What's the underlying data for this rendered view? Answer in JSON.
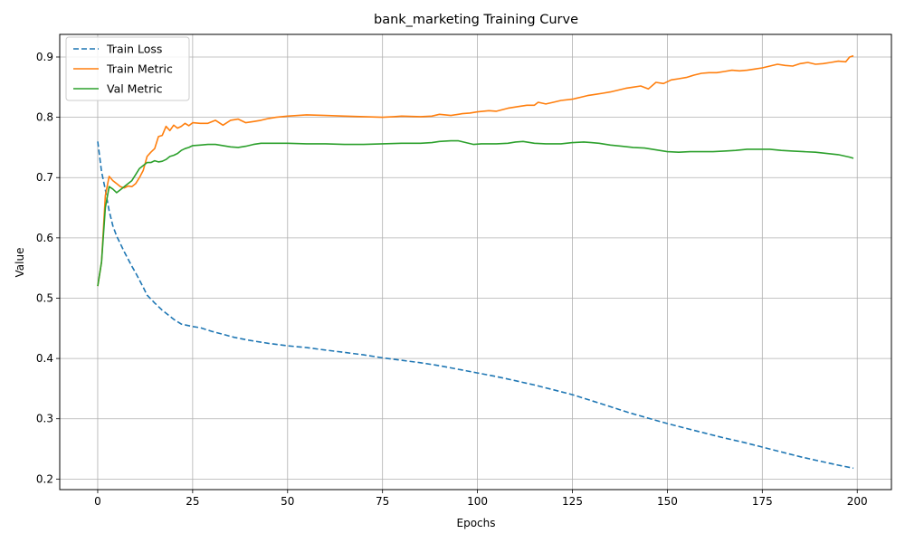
{
  "chart_data": {
    "type": "line",
    "title": "bank_marketing Training Curve",
    "xlabel": "Epochs",
    "ylabel": "Value",
    "xlim": [
      -10,
      209
    ],
    "ylim": [
      0.1825,
      0.9375
    ],
    "xticks": [
      0,
      25,
      50,
      75,
      100,
      125,
      150,
      175,
      200
    ],
    "yticks": [
      0.2,
      0.3,
      0.4,
      0.5,
      0.6,
      0.7,
      0.8,
      0.9
    ],
    "grid": true,
    "legend_position": "top-left",
    "series": [
      {
        "name": "Train Loss",
        "color": "#1f77b4",
        "style": "dashed",
        "points": [
          [
            0,
            0.76
          ],
          [
            1,
            0.71
          ],
          [
            2,
            0.68
          ],
          [
            3,
            0.645
          ],
          [
            4,
            0.62
          ],
          [
            5,
            0.603
          ],
          [
            6,
            0.59
          ],
          [
            7,
            0.577
          ],
          [
            8,
            0.565
          ],
          [
            9,
            0.553
          ],
          [
            10,
            0.542
          ],
          [
            12,
            0.518
          ],
          [
            13,
            0.505
          ],
          [
            15,
            0.492
          ],
          [
            17,
            0.48
          ],
          [
            20,
            0.465
          ],
          [
            22,
            0.457
          ],
          [
            25,
            0.453
          ],
          [
            27,
            0.451
          ],
          [
            30,
            0.445
          ],
          [
            33,
            0.44
          ],
          [
            36,
            0.435
          ],
          [
            40,
            0.43
          ],
          [
            45,
            0.425
          ],
          [
            50,
            0.421
          ],
          [
            55,
            0.418
          ],
          [
            60,
            0.414
          ],
          [
            65,
            0.41
          ],
          [
            70,
            0.406
          ],
          [
            75,
            0.401
          ],
          [
            80,
            0.397
          ],
          [
            85,
            0.393
          ],
          [
            90,
            0.388
          ],
          [
            95,
            0.382
          ],
          [
            100,
            0.376
          ],
          [
            105,
            0.37
          ],
          [
            110,
            0.363
          ],
          [
            115,
            0.356
          ],
          [
            120,
            0.348
          ],
          [
            125,
            0.34
          ],
          [
            130,
            0.33
          ],
          [
            135,
            0.32
          ],
          [
            140,
            0.31
          ],
          [
            145,
            0.301
          ],
          [
            150,
            0.292
          ],
          [
            155,
            0.284
          ],
          [
            160,
            0.276
          ],
          [
            165,
            0.268
          ],
          [
            170,
            0.261
          ],
          [
            175,
            0.253
          ],
          [
            180,
            0.245
          ],
          [
            185,
            0.237
          ],
          [
            190,
            0.23
          ],
          [
            195,
            0.223
          ],
          [
            199,
            0.218
          ]
        ]
      },
      {
        "name": "Train Metric",
        "color": "#ff7f0e",
        "style": "solid",
        "points": [
          [
            0,
            0.52
          ],
          [
            1,
            0.56
          ],
          [
            2,
            0.67
          ],
          [
            3,
            0.702
          ],
          [
            4,
            0.695
          ],
          [
            5,
            0.69
          ],
          [
            6,
            0.685
          ],
          [
            7,
            0.683
          ],
          [
            8,
            0.686
          ],
          [
            9,
            0.685
          ],
          [
            10,
            0.69
          ],
          [
            11,
            0.7
          ],
          [
            12,
            0.712
          ],
          [
            13,
            0.735
          ],
          [
            14,
            0.742
          ],
          [
            15,
            0.748
          ],
          [
            16,
            0.768
          ],
          [
            17,
            0.77
          ],
          [
            18,
            0.785
          ],
          [
            19,
            0.778
          ],
          [
            20,
            0.787
          ],
          [
            21,
            0.782
          ],
          [
            22,
            0.785
          ],
          [
            23,
            0.79
          ],
          [
            24,
            0.786
          ],
          [
            25,
            0.791
          ],
          [
            27,
            0.79
          ],
          [
            29,
            0.79
          ],
          [
            31,
            0.795
          ],
          [
            33,
            0.787
          ],
          [
            35,
            0.795
          ],
          [
            37,
            0.797
          ],
          [
            39,
            0.791
          ],
          [
            41,
            0.793
          ],
          [
            43,
            0.795
          ],
          [
            45,
            0.798
          ],
          [
            47,
            0.8
          ],
          [
            50,
            0.802
          ],
          [
            55,
            0.804
          ],
          [
            60,
            0.803
          ],
          [
            65,
            0.802
          ],
          [
            70,
            0.801
          ],
          [
            75,
            0.8
          ],
          [
            78,
            0.801
          ],
          [
            80,
            0.802
          ],
          [
            85,
            0.801
          ],
          [
            88,
            0.802
          ],
          [
            90,
            0.805
          ],
          [
            93,
            0.803
          ],
          [
            96,
            0.806
          ],
          [
            98,
            0.807
          ],
          [
            100,
            0.809
          ],
          [
            103,
            0.811
          ],
          [
            105,
            0.81
          ],
          [
            108,
            0.815
          ],
          [
            111,
            0.818
          ],
          [
            113,
            0.82
          ],
          [
            115,
            0.82
          ],
          [
            116,
            0.825
          ],
          [
            118,
            0.822
          ],
          [
            120,
            0.825
          ],
          [
            122,
            0.828
          ],
          [
            125,
            0.83
          ],
          [
            127,
            0.833
          ],
          [
            129,
            0.836
          ],
          [
            131,
            0.838
          ],
          [
            133,
            0.84
          ],
          [
            135,
            0.842
          ],
          [
            137,
            0.845
          ],
          [
            139,
            0.848
          ],
          [
            141,
            0.85
          ],
          [
            143,
            0.852
          ],
          [
            145,
            0.847
          ],
          [
            147,
            0.858
          ],
          [
            149,
            0.856
          ],
          [
            151,
            0.862
          ],
          [
            153,
            0.864
          ],
          [
            155,
            0.866
          ],
          [
            157,
            0.87
          ],
          [
            159,
            0.873
          ],
          [
            161,
            0.874
          ],
          [
            163,
            0.874
          ],
          [
            165,
            0.876
          ],
          [
            167,
            0.878
          ],
          [
            169,
            0.877
          ],
          [
            171,
            0.878
          ],
          [
            173,
            0.88
          ],
          [
            175,
            0.882
          ],
          [
            177,
            0.885
          ],
          [
            179,
            0.888
          ],
          [
            181,
            0.886
          ],
          [
            183,
            0.885
          ],
          [
            185,
            0.889
          ],
          [
            187,
            0.891
          ],
          [
            189,
            0.888
          ],
          [
            191,
            0.889
          ],
          [
            193,
            0.891
          ],
          [
            195,
            0.893
          ],
          [
            197,
            0.892
          ],
          [
            198,
            0.9
          ],
          [
            199,
            0.902
          ]
        ]
      },
      {
        "name": "Val Metric",
        "color": "#2ca02c",
        "style": "solid",
        "points": [
          [
            0,
            0.52
          ],
          [
            1,
            0.56
          ],
          [
            2,
            0.65
          ],
          [
            3,
            0.685
          ],
          [
            4,
            0.681
          ],
          [
            5,
            0.675
          ],
          [
            6,
            0.68
          ],
          [
            7,
            0.685
          ],
          [
            8,
            0.69
          ],
          [
            9,
            0.695
          ],
          [
            10,
            0.705
          ],
          [
            11,
            0.715
          ],
          [
            12,
            0.72
          ],
          [
            13,
            0.725
          ],
          [
            14,
            0.725
          ],
          [
            15,
            0.728
          ],
          [
            16,
            0.726
          ],
          [
            17,
            0.727
          ],
          [
            18,
            0.73
          ],
          [
            19,
            0.735
          ],
          [
            20,
            0.737
          ],
          [
            21,
            0.74
          ],
          [
            22,
            0.745
          ],
          [
            23,
            0.748
          ],
          [
            24,
            0.75
          ],
          [
            25,
            0.753
          ],
          [
            27,
            0.754
          ],
          [
            29,
            0.755
          ],
          [
            31,
            0.755
          ],
          [
            33,
            0.753
          ],
          [
            35,
            0.751
          ],
          [
            37,
            0.75
          ],
          [
            39,
            0.752
          ],
          [
            41,
            0.755
          ],
          [
            43,
            0.757
          ],
          [
            45,
            0.757
          ],
          [
            47,
            0.757
          ],
          [
            50,
            0.757
          ],
          [
            55,
            0.756
          ],
          [
            60,
            0.756
          ],
          [
            65,
            0.755
          ],
          [
            70,
            0.755
          ],
          [
            75,
            0.756
          ],
          [
            80,
            0.757
          ],
          [
            85,
            0.757
          ],
          [
            88,
            0.758
          ],
          [
            90,
            0.76
          ],
          [
            93,
            0.761
          ],
          [
            95,
            0.761
          ],
          [
            97,
            0.758
          ],
          [
            99,
            0.755
          ],
          [
            101,
            0.756
          ],
          [
            105,
            0.756
          ],
          [
            108,
            0.757
          ],
          [
            110,
            0.759
          ],
          [
            112,
            0.76
          ],
          [
            115,
            0.757
          ],
          [
            118,
            0.756
          ],
          [
            122,
            0.756
          ],
          [
            125,
            0.758
          ],
          [
            128,
            0.759
          ],
          [
            130,
            0.758
          ],
          [
            132,
            0.757
          ],
          [
            135,
            0.754
          ],
          [
            138,
            0.752
          ],
          [
            141,
            0.75
          ],
          [
            144,
            0.749
          ],
          [
            147,
            0.746
          ],
          [
            150,
            0.743
          ],
          [
            153,
            0.742
          ],
          [
            156,
            0.743
          ],
          [
            159,
            0.743
          ],
          [
            162,
            0.743
          ],
          [
            165,
            0.744
          ],
          [
            168,
            0.745
          ],
          [
            171,
            0.747
          ],
          [
            174,
            0.747
          ],
          [
            177,
            0.747
          ],
          [
            180,
            0.745
          ],
          [
            183,
            0.744
          ],
          [
            186,
            0.743
          ],
          [
            189,
            0.742
          ],
          [
            192,
            0.74
          ],
          [
            195,
            0.738
          ],
          [
            198,
            0.734
          ],
          [
            199,
            0.732
          ]
        ]
      }
    ]
  }
}
